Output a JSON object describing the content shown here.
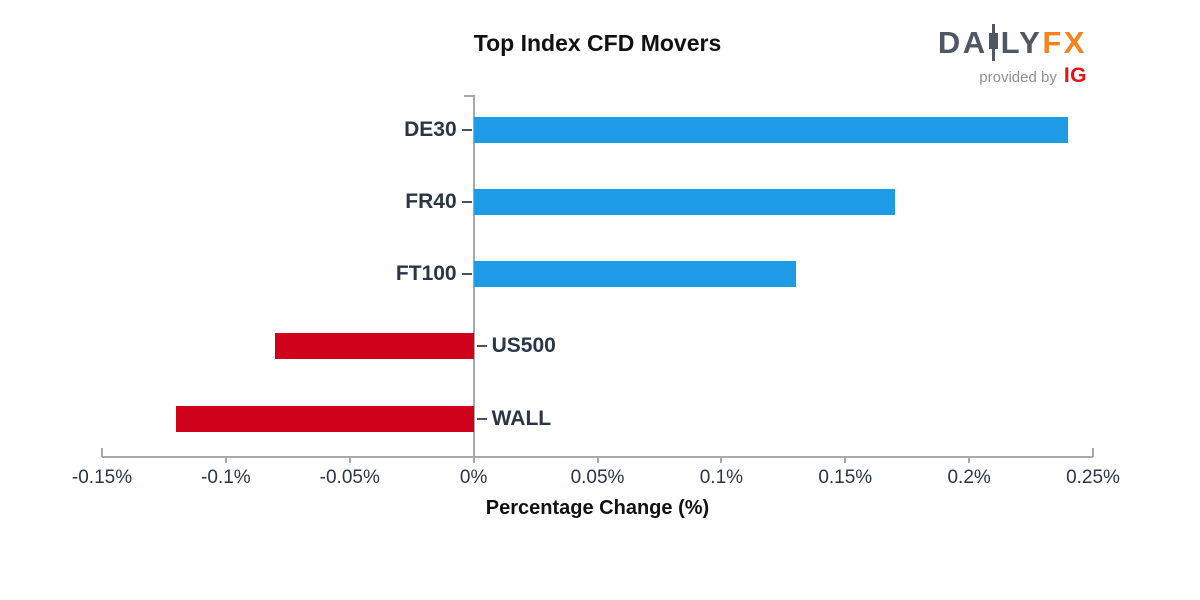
{
  "logo": {
    "part1": "DA",
    "part2": "LY",
    "fx": "FX",
    "provided_by": "provided by",
    "ig": "IG",
    "colors": {
      "daily": "#4e5763",
      "fx": "#f8821f",
      "provided_by": "#8b9198",
      "ig": "#e8101c"
    }
  },
  "chart_data": {
    "type": "bar",
    "orientation": "horizontal",
    "title": "Top Index CFD Movers",
    "xlabel": "Percentage Change (%)",
    "categories": [
      "DE30",
      "FR40",
      "FT100",
      "US500",
      "WALL"
    ],
    "values": [
      0.24,
      0.17,
      0.13,
      -0.08,
      -0.12
    ],
    "xlim": [
      -0.15,
      0.25
    ],
    "xtick_values": [
      -0.15,
      -0.1,
      -0.05,
      0,
      0.05,
      0.1,
      0.15,
      0.2,
      0.25
    ],
    "xtick_labels": [
      "-0.15%",
      "-0.1%",
      "-0.05%",
      "0%",
      "0.05%",
      "0.1%",
      "0.15%",
      "0.2%",
      "0.25%"
    ],
    "positive_color": "#1d9ce5",
    "negative_color": "#d0021b",
    "axis_color": "#a8a8a8",
    "tick_label_color": "#2a3648",
    "category_label_color": "#2a3648",
    "grid": false,
    "legend": "none"
  }
}
